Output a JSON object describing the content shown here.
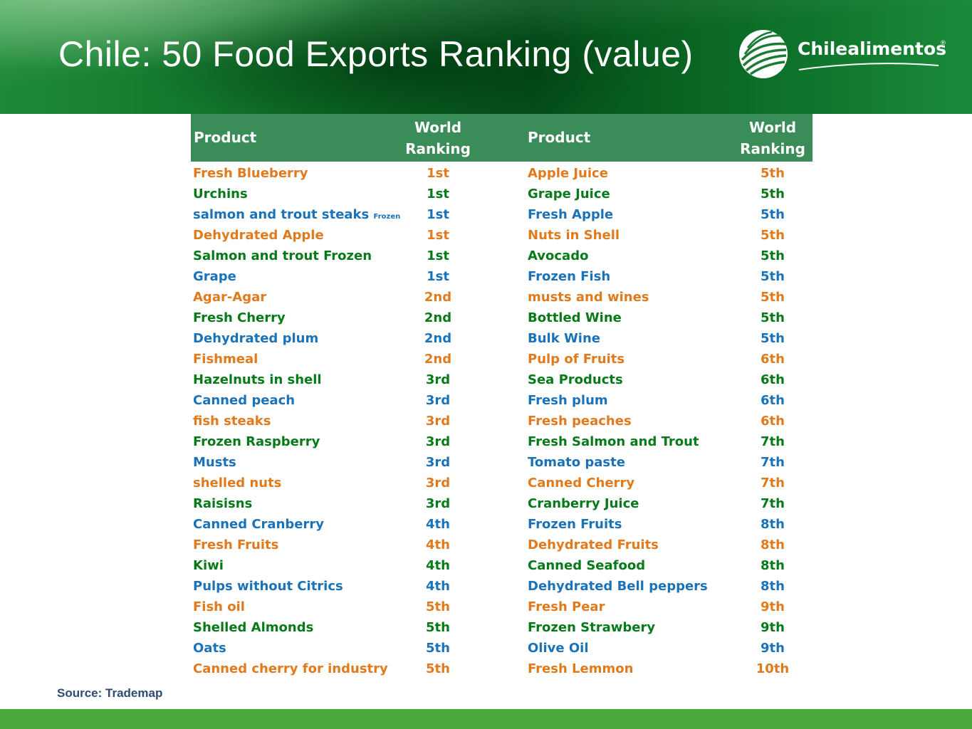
{
  "slide": {
    "title": "Chile: 50 Food Exports Ranking (value)",
    "source": "Source: Trademap"
  },
  "logo": {
    "name": "Chilealimentos",
    "registered": "®"
  },
  "table": {
    "headers": {
      "product": "Product",
      "ranking_line1": "World",
      "ranking_line2": "Ranking"
    },
    "left": [
      {
        "product": "Fresh Blueberry",
        "rank": "1st",
        "color": "#e07a1c"
      },
      {
        "product": "Urchins",
        "rank": "1st",
        "color": "#067a18"
      },
      {
        "product": "salmon and trout steaks",
        "note": "Frozen",
        "rank": "1st",
        "color": "#1a72b8"
      },
      {
        "product": "Dehydrated Apple",
        "rank": "1st",
        "color": "#e07a1c"
      },
      {
        "product": "Salmon and trout Frozen",
        "rank": "1st",
        "color": "#067a18"
      },
      {
        "product": "Grape",
        "rank": "1st",
        "color": "#1a72b8"
      },
      {
        "product": "Agar-Agar",
        "rank": "2nd",
        "color": "#e07a1c"
      },
      {
        "product": "Fresh Cherry",
        "rank": "2nd",
        "color": "#067a18"
      },
      {
        "product": "Dehydrated plum",
        "rank": "2nd",
        "color": "#1a72b8"
      },
      {
        "product": "Fishmeal",
        "rank": "2nd",
        "color": "#e07a1c"
      },
      {
        "product": "Hazelnuts in shell",
        "rank": "3rd",
        "color": "#067a18"
      },
      {
        "product": "Canned peach",
        "rank": "3rd",
        "color": "#1a72b8"
      },
      {
        "product": "fish steaks",
        "rank": "3rd",
        "color": "#e07a1c"
      },
      {
        "product": "Frozen Raspberry",
        "rank": "3rd",
        "color": "#067a18"
      },
      {
        "product": "Musts",
        "rank": "3rd",
        "color": "#1a72b8"
      },
      {
        "product": "shelled nuts",
        "rank": "3rd",
        "color": "#e07a1c"
      },
      {
        "product": "Raisisns",
        "rank": "3rd",
        "color": "#067a18"
      },
      {
        "product": "Canned Cranberry",
        "rank": "4th",
        "color": "#1a72b8"
      },
      {
        "product": "Fresh Fruits",
        "rank": "4th",
        "color": "#e07a1c"
      },
      {
        "product": "Kiwi",
        "rank": "4th",
        "color": "#067a18"
      },
      {
        "product": "Pulps without Citrics",
        "rank": "4th",
        "color": "#1a72b8"
      },
      {
        "product": "Fish oil",
        "rank": "5th",
        "color": "#e07a1c"
      },
      {
        "product": "Shelled Almonds",
        "rank": "5th",
        "color": "#067a18"
      },
      {
        "product": "Oats",
        "rank": "5th",
        "color": "#1a72b8"
      },
      {
        "product": "Canned cherry for industry",
        "rank": "5th",
        "color": "#e07a1c"
      }
    ],
    "right": [
      {
        "product": "Apple Juice",
        "rank": "5th",
        "color": "#e07a1c"
      },
      {
        "product": "Grape Juice",
        "rank": "5th",
        "color": "#067a18"
      },
      {
        "product": "Fresh Apple",
        "rank": "5th",
        "color": "#1a72b8"
      },
      {
        "product": "Nuts in Shell",
        "rank": "5th",
        "color": "#e07a1c"
      },
      {
        "product": "Avocado",
        "rank": "5th",
        "color": "#067a18"
      },
      {
        "product": "Frozen Fish",
        "rank": "5th",
        "color": "#1a72b8"
      },
      {
        "product": "musts and wines",
        "rank": "5th",
        "color": "#e07a1c"
      },
      {
        "product": "Bottled Wine",
        "rank": "5th",
        "color": "#067a18"
      },
      {
        "product": "Bulk Wine",
        "rank": "5th",
        "color": "#1a72b8"
      },
      {
        "product": "Pulp of Fruits",
        "rank": "6th",
        "color": "#e07a1c"
      },
      {
        "product": "Sea Products",
        "rank": "6th",
        "color": "#067a18"
      },
      {
        "product": "Fresh plum",
        "rank": "6th",
        "color": "#1a72b8"
      },
      {
        "product": "Fresh peaches",
        "rank": "6th",
        "color": "#e07a1c"
      },
      {
        "product": "Fresh Salmon and Trout",
        "rank": "7th",
        "color": "#067a18"
      },
      {
        "product": "Tomato paste",
        "rank": "7th",
        "color": "#1a72b8"
      },
      {
        "product": "Canned Cherry",
        "rank": "7th",
        "color": "#e07a1c"
      },
      {
        "product": "Cranberry Juice",
        "rank": "7th",
        "color": "#067a18"
      },
      {
        "product": "Frozen Fruits",
        "rank": "8th",
        "color": "#1a72b8"
      },
      {
        "product": "Dehydrated Fruits",
        "rank": "8th",
        "color": "#e07a1c"
      },
      {
        "product": "Canned Seafood",
        "rank": "8th",
        "color": "#067a18"
      },
      {
        "product": "Dehydrated Bell peppers",
        "rank": "8th",
        "color": "#1a72b8"
      },
      {
        "product": "Fresh Pear",
        "rank": "9th",
        "color": "#e07a1c"
      },
      {
        "product": "Frozen Strawbery",
        "rank": "9th",
        "color": "#067a18"
      },
      {
        "product": "Olive Oil",
        "rank": "9th",
        "color": "#1a72b8"
      },
      {
        "product": "Fresh Lemmon",
        "rank": "10th",
        "color": "#e07a1c"
      }
    ]
  }
}
